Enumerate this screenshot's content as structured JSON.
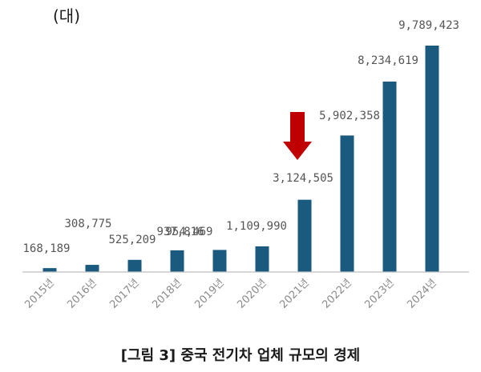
{
  "figure": {
    "unit_label": "(대)",
    "caption": "[그림 3] 중국 전기차 업체 규모의 경제"
  },
  "chart_data": {
    "type": "bar",
    "title": "",
    "xlabel": "",
    "ylabel": "(대)",
    "categories": [
      "2015년",
      "2016년",
      "2017년",
      "2018년",
      "2019년",
      "2020년",
      "2021년",
      "2022년",
      "2023년",
      "2024년"
    ],
    "values": [
      168189,
      308775,
      525209,
      937816,
      954469,
      1109990,
      3124505,
      5902358,
      8234619,
      9789423
    ],
    "value_labels": [
      "168,189",
      "308,775",
      "525,209",
      "937,816",
      "954,469",
      "1,109,990",
      "3,124,505",
      "5,902,358",
      "8,234,619",
      "9,789,423"
    ],
    "ylim": [
      0,
      9789423
    ],
    "grid": false,
    "legend": "none",
    "bar_color": "#1a5a7f",
    "axis_color": "#bfbfbf",
    "annotations": [
      {
        "type": "arrow-down",
        "near_category": "2021년",
        "color": "#c00000"
      }
    ]
  }
}
